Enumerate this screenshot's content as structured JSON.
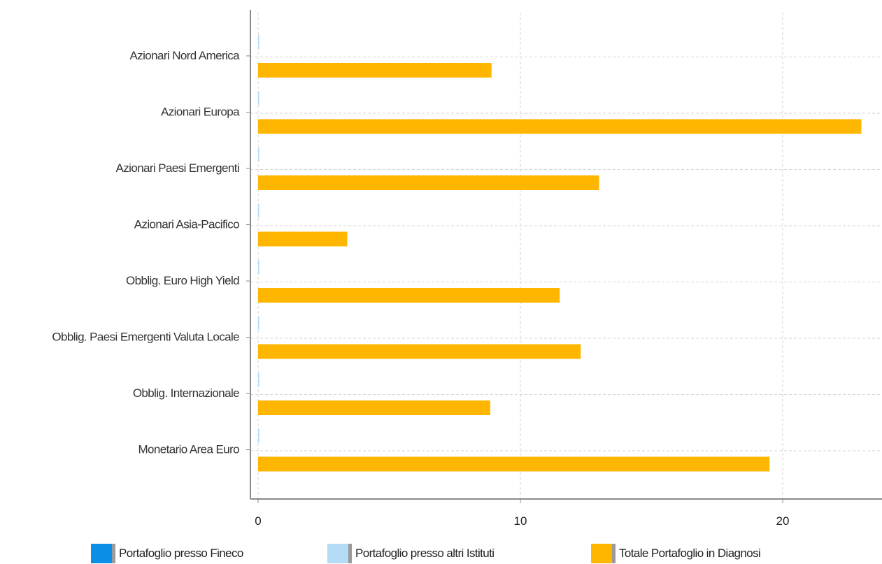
{
  "chart_data": {
    "type": "bar",
    "orientation": "horizontal",
    "categories": [
      "Azionari Nord America",
      "Azionari Europa",
      "Azionari Paesi Emergenti",
      "Azionari Asia-Pacifico",
      "Obblig. Euro High Yield",
      "Obblig. Paesi Emergenti Valuta Locale",
      "Obblig. Internazionale",
      "Monetario Area Euro"
    ],
    "series": [
      {
        "name": "Portafoglio presso Fineco",
        "color": "#0a8ee6",
        "values": [
          0,
          0,
          0,
          0,
          0,
          0,
          0,
          0
        ]
      },
      {
        "name": "Portafoglio presso altri Istituti",
        "color": "#b5dcf7",
        "values": [
          0,
          0,
          0,
          0,
          0,
          0,
          0,
          0
        ]
      },
      {
        "name": "Totale Portafoglio in Diagnosi",
        "color": "#ffb600",
        "values": [
          8.9,
          23.0,
          13.0,
          3.4,
          11.5,
          12.3,
          8.85,
          19.5
        ]
      }
    ],
    "x_ticks": [
      "0",
      "10",
      "20"
    ],
    "xlim": [
      0,
      23.5
    ],
    "grid": true,
    "legend_position": "bottom"
  }
}
